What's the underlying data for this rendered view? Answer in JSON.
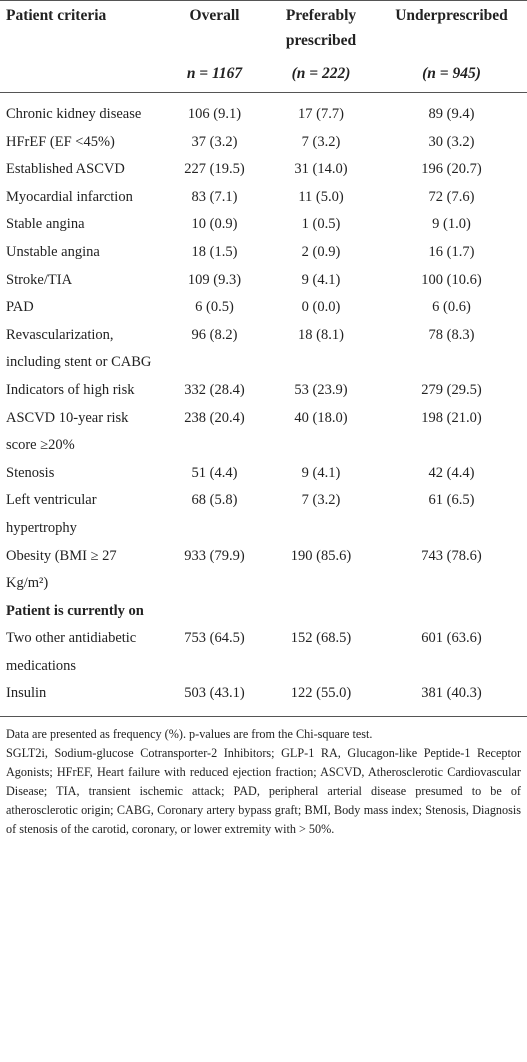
{
  "table": {
    "header": [
      "Patient criteria",
      "Overall",
      "Preferably prescribed",
      "Underprescribed"
    ],
    "subheader": [
      "n = 1167",
      "(n = 222)",
      "(n = 945)"
    ],
    "rows": [
      {
        "label": "Chronic kidney disease",
        "values": [
          "106 (9.1)",
          "17 (7.7)",
          "89 (9.4)"
        ]
      },
      {
        "label": "HFrEF (EF <45%)",
        "values": [
          "37 (3.2)",
          "7 (3.2)",
          "30 (3.2)"
        ]
      },
      {
        "label": "Established ASCVD",
        "values": [
          "227 (19.5)",
          "31 (14.0)",
          "196 (20.7)"
        ]
      },
      {
        "label": "Myocardial infarction",
        "values": [
          "83 (7.1)",
          "11 (5.0)",
          "72 (7.6)"
        ]
      },
      {
        "label": "Stable angina",
        "values": [
          "10 (0.9)",
          "1 (0.5)",
          "9 (1.0)"
        ]
      },
      {
        "label": "Unstable angina",
        "values": [
          "18 (1.5)",
          "2 (0.9)",
          "16 (1.7)"
        ]
      },
      {
        "label": "Stroke/TIA",
        "values": [
          "109 (9.3)",
          "9 (4.1)",
          "100 (10.6)"
        ]
      },
      {
        "label": "PAD",
        "values": [
          "6 (0.5)",
          "0 (0.0)",
          "6 (0.6)"
        ]
      },
      {
        "label": "Revascularization, including stent or CABG",
        "values": [
          "96 (8.2)",
          "18 (8.1)",
          "78 (8.3)"
        ]
      },
      {
        "label": "Indicators of high risk",
        "values": [
          "332 (28.4)",
          "53 (23.9)",
          "279 (29.5)"
        ]
      },
      {
        "label": "ASCVD 10-year risk score ≥20%",
        "values": [
          "238 (20.4)",
          "40 (18.0)",
          "198 (21.0)"
        ]
      },
      {
        "label": "Stenosis",
        "values": [
          "51 (4.4)",
          "9 (4.1)",
          "42 (4.4)"
        ]
      },
      {
        "label": "Left ventricular hypertrophy",
        "values": [
          "68 (5.8)",
          "7 (3.2)",
          "61 (6.5)"
        ]
      },
      {
        "label": "Obesity (BMI ≥ 27 Kg/m²)",
        "values": [
          "933 (79.9)",
          "190 (85.6)",
          "743 (78.6)"
        ]
      },
      {
        "label": "Patient is currently on"
      },
      {
        "label": "Two other antidiabetic medications",
        "values": [
          "753 (64.5)",
          "152 (68.5)",
          "601 (63.6)"
        ]
      },
      {
        "label": "Insulin",
        "values": [
          "503 (43.1)",
          "122 (55.0)",
          "381 (40.3)"
        ]
      }
    ],
    "footnotes": [
      "Data are presented as frequency (%). p-values are from the Chi-square test.",
      "SGLT2i, Sodium-glucose Cotransporter-2 Inhibitors; GLP-1 RA, Glucagon-like Peptide-1 Receptor Agonists; HFrEF, Heart failure with reduced ejection fraction; ASCVD, Atherosclerotic Cardiovascular Disease; TIA, transient ischemic attack; PAD, peripheral arterial disease presumed to be of atherosclerotic origin; CABG, Coronary artery bypass graft; BMI, Body mass index; Stenosis, Diagnosis of stenosis of the carotid, coronary, or lower extremity with > 50%."
    ]
  }
}
